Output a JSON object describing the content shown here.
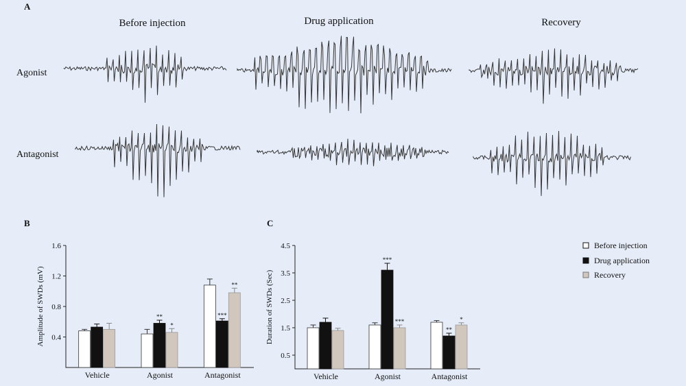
{
  "panel_a": {
    "letter": "A",
    "columns": [
      "Before injection",
      "Drug application",
      "Recovery"
    ],
    "rows": [
      "Agonist",
      "Antagonist"
    ]
  },
  "legend": {
    "items": [
      {
        "label": "Before injection",
        "color": "#ffffff"
      },
      {
        "label": "Drug application",
        "color": "#111111"
      },
      {
        "label": "Recovery",
        "color": "#d2c7bd"
      }
    ]
  },
  "chart_data": [
    {
      "panel": "B",
      "type": "bar",
      "ylabel": "Amplitude of SWDs (mV)",
      "xlabel": "",
      "ylim": [
        0,
        1.6
      ],
      "yticks": [
        "0.4",
        "0.8",
        "1.2",
        "1.6"
      ],
      "yticks_values": [
        0.4,
        0.8,
        1.2,
        1.6
      ],
      "categories": [
        "Vehicle",
        "Agonist",
        "Antagonist"
      ],
      "series": [
        {
          "name": "Before injection",
          "values": [
            0.48,
            0.44,
            1.08
          ],
          "errors": [
            0.02,
            0.06,
            0.08
          ],
          "sig": [
            "",
            "",
            ""
          ]
        },
        {
          "name": "Drug application",
          "values": [
            0.53,
            0.58,
            0.61
          ],
          "errors": [
            0.04,
            0.04,
            0.03
          ],
          "sig": [
            "",
            "**",
            "***"
          ]
        },
        {
          "name": "Recovery",
          "values": [
            0.5,
            0.46,
            0.98
          ],
          "errors": [
            0.08,
            0.05,
            0.06
          ],
          "sig": [
            "",
            "*",
            "**"
          ]
        }
      ]
    },
    {
      "panel": "C",
      "type": "bar",
      "ylabel": "Duration of SWDs (Sec)",
      "xlabel": "",
      "ylim": [
        0,
        4.5
      ],
      "yticks": [
        "0.5",
        "1.5",
        "2.5",
        "3.5",
        "4.5"
      ],
      "yticks_values": [
        0.5,
        1.5,
        2.5,
        3.5,
        4.5
      ],
      "categories": [
        "Vehicle",
        "Agonist",
        "Antagonist"
      ],
      "series": [
        {
          "name": "Before injection",
          "values": [
            1.5,
            1.6,
            1.7
          ],
          "errors": [
            0.1,
            0.08,
            0.06
          ],
          "sig": [
            "",
            "",
            ""
          ]
        },
        {
          "name": "Drug application",
          "values": [
            1.7,
            3.6,
            1.2
          ],
          "errors": [
            0.15,
            0.25,
            0.1
          ],
          "sig": [
            "",
            "***",
            "**"
          ]
        },
        {
          "name": "Recovery",
          "values": [
            1.4,
            1.5,
            1.6
          ],
          "errors": [
            0.08,
            0.1,
            0.08
          ],
          "sig": [
            "",
            "***",
            "*"
          ]
        }
      ]
    }
  ]
}
